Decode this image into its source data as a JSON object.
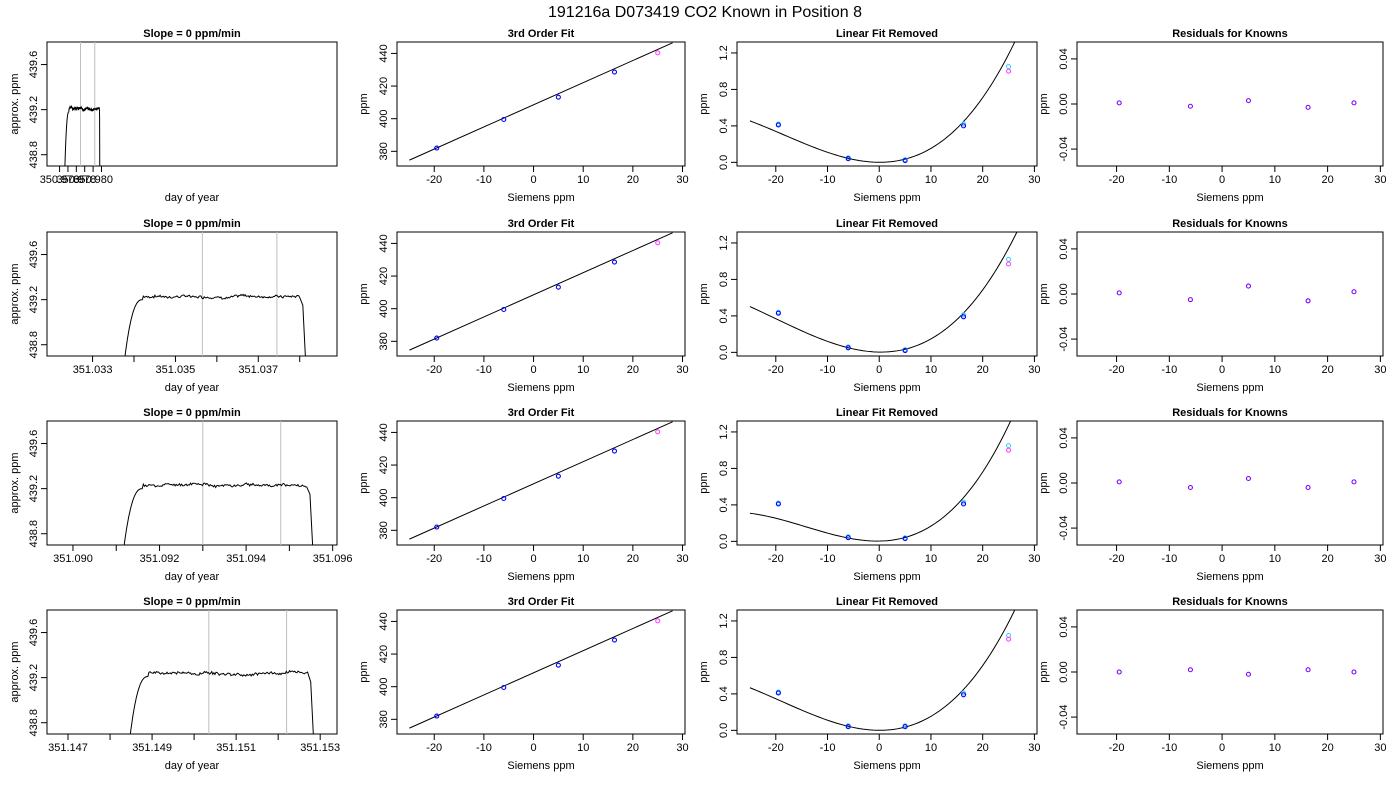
{
  "page_title": "191216a     D073419   CO2 Known in Position  8",
  "chart_data": [
    {
      "type": "line",
      "kind": "trace",
      "row": 1,
      "title": "Slope =  0  ppm/min",
      "xlabel": "day of year",
      "ylabel": "approx. ppm",
      "xlim": [
        350.9745,
        351.0091
      ],
      "ylim": [
        438.7,
        439.8
      ],
      "xticks": [
        350.976,
        350.977,
        350.978,
        350.979,
        350.98,
        350.981
      ],
      "xtick_labels": [
        "350.976",
        "",
        "350.978",
        "",
        "350.980",
        ""
      ],
      "yticks": [
        438.8,
        439.2,
        439.6
      ],
      "ytick_labels": [
        "438.8",
        "439.2",
        "439.6"
      ],
      "trace": {
        "start": 350.9766,
        "rise_end": 350.9771,
        "end": 350.9808,
        "fall_start": 350.98075,
        "level": 439.21,
        "low": 438.6,
        "wiggle": 0.02,
        "seed": 3
      },
      "vlines": [
        350.9785,
        350.9802
      ]
    },
    {
      "type": "line",
      "kind": "trace",
      "row": 2,
      "title": "Slope =  0  ppm/min",
      "xlabel": "day of year",
      "ylabel": "approx. ppm",
      "xlim": [
        351.0319,
        351.0389
      ],
      "ylim": [
        438.7,
        439.8
      ],
      "xticks": [
        351.033,
        351.034,
        351.035,
        351.036,
        351.037,
        351.038
      ],
      "xtick_labels": [
        "351.033",
        "",
        "351.035",
        "",
        "351.037",
        ""
      ],
      "yticks": [
        438.8,
        439.2,
        439.6
      ],
      "ytick_labels": [
        "438.8",
        "439.2",
        "439.6"
      ],
      "trace": {
        "start": 351.03375,
        "rise_end": 351.0342,
        "end": 351.03815,
        "fall_start": 351.038,
        "level": 439.23,
        "low": 438.6,
        "wiggle": 0.02,
        "seed": 7
      },
      "vlines": [
        351.03565,
        351.03745
      ]
    },
    {
      "type": "line",
      "kind": "trace",
      "row": 3,
      "title": "Slope =  0  ppm/min",
      "xlabel": "day of year",
      "ylabel": "approx. ppm",
      "xlim": [
        351.0894,
        351.0961
      ],
      "ylim": [
        438.7,
        439.8
      ],
      "xticks": [
        351.09,
        351.091,
        351.092,
        351.093,
        351.094,
        351.095,
        351.096
      ],
      "xtick_labels": [
        "351.090",
        "",
        "351.092",
        "",
        "351.094",
        "",
        "351.096"
      ],
      "yticks": [
        438.8,
        439.2,
        439.6
      ],
      "ytick_labels": [
        "438.8",
        "439.2",
        "439.6"
      ],
      "trace": {
        "start": 351.09115,
        "rise_end": 351.0916,
        "end": 351.09555,
        "fall_start": 351.0954,
        "level": 439.23,
        "low": 438.6,
        "wiggle": 0.02,
        "seed": 11
      },
      "vlines": [
        351.093,
        351.0948
      ]
    },
    {
      "type": "line",
      "kind": "trace",
      "row": 4,
      "title": "Slope =  0  ppm/min",
      "xlabel": "day of year",
      "ylabel": "approx. ppm",
      "xlim": [
        351.1465,
        351.1534
      ],
      "ylim": [
        438.7,
        439.8
      ],
      "xticks": [
        351.147,
        351.148,
        351.149,
        351.15,
        351.151,
        351.152,
        351.153
      ],
      "xtick_labels": [
        "351.147",
        "",
        "351.149",
        "",
        "351.151",
        "",
        "351.153"
      ],
      "yticks": [
        438.8,
        439.2,
        439.6
      ],
      "ytick_labels": [
        "438.8",
        "439.2",
        "439.6"
      ],
      "trace": {
        "start": 351.14845,
        "rise_end": 351.1489,
        "end": 351.15285,
        "fall_start": 351.1527,
        "level": 439.24,
        "low": 438.6,
        "wiggle": 0.02,
        "seed": 19
      },
      "vlines": [
        351.15035,
        351.1522
      ]
    },
    {
      "type": "scatter",
      "kind": "fit",
      "row": 1,
      "title": "3rd Order Fit",
      "xlabel": "Siemens ppm",
      "ylabel": "ppm",
      "xlim": [
        -27.5,
        30.5
      ],
      "ylim": [
        371,
        447
      ],
      "xticks": [
        -20,
        -10,
        0,
        10,
        20,
        30
      ],
      "yticks": [
        380,
        400,
        420,
        440
      ],
      "line": {
        "x0": -25,
        "y0": 374.6,
        "x1": 28,
        "y1": 446.5
      },
      "x": [
        -19.5,
        -6,
        5,
        16.3,
        25
      ],
      "y": [
        382.0,
        399.5,
        413.2,
        428.6,
        440.4
      ],
      "colors": [
        "#0000ff",
        "#0000ff",
        "#0000ff",
        "#0000ff",
        "#ff44ff"
      ]
    },
    {
      "type": "scatter",
      "kind": "fit",
      "row": 2,
      "title": "3rd Order Fit",
      "xlabel": "Siemens ppm",
      "ylabel": "ppm",
      "xlim": [
        -27.5,
        30.5
      ],
      "ylim": [
        371,
        447
      ],
      "xticks": [
        -20,
        -10,
        0,
        10,
        20,
        30
      ],
      "yticks": [
        380,
        400,
        420,
        440
      ],
      "line": {
        "x0": -25,
        "y0": 374.6,
        "x1": 28,
        "y1": 446.5
      },
      "x": [
        -19.5,
        -6,
        5,
        16.3,
        25
      ],
      "y": [
        382.0,
        399.5,
        413.2,
        428.6,
        440.4
      ],
      "colors": [
        "#0000ff",
        "#0000ff",
        "#0000ff",
        "#0000ff",
        "#ff44ff"
      ]
    },
    {
      "type": "scatter",
      "kind": "fit",
      "row": 3,
      "title": "3rd Order Fit",
      "xlabel": "Siemens ppm",
      "ylabel": "ppm",
      "xlim": [
        -27.5,
        30.5
      ],
      "ylim": [
        371,
        447
      ],
      "xticks": [
        -20,
        -10,
        0,
        10,
        20,
        30
      ],
      "yticks": [
        380,
        400,
        420,
        440
      ],
      "line": {
        "x0": -25,
        "y0": 374.6,
        "x1": 28,
        "y1": 446.5
      },
      "x": [
        -19.5,
        -6,
        5,
        16.3,
        25
      ],
      "y": [
        382.0,
        399.5,
        413.2,
        428.6,
        440.4
      ],
      "colors": [
        "#0000ff",
        "#0000ff",
        "#0000ff",
        "#0000ff",
        "#ff44ff"
      ]
    },
    {
      "type": "scatter",
      "kind": "fit",
      "row": 4,
      "title": "3rd Order Fit",
      "xlabel": "Siemens ppm",
      "ylabel": "ppm",
      "xlim": [
        -27.5,
        30.5
      ],
      "ylim": [
        371,
        447
      ],
      "xticks": [
        -20,
        -10,
        0,
        10,
        20,
        30
      ],
      "yticks": [
        380,
        400,
        420,
        440
      ],
      "line": {
        "x0": -25,
        "y0": 374.6,
        "x1": 28,
        "y1": 446.5
      },
      "x": [
        -19.5,
        -6,
        5,
        16.3,
        25
      ],
      "y": [
        382.0,
        399.5,
        413.2,
        428.6,
        440.4
      ],
      "colors": [
        "#0000ff",
        "#0000ff",
        "#0000ff",
        "#0000ff",
        "#ff44ff"
      ]
    },
    {
      "type": "scatter",
      "kind": "curve",
      "row": 1,
      "title": "Linear Fit Removed",
      "xlabel": "Siemens ppm",
      "ylabel": "ppm",
      "xlim": [
        -27.5,
        30.5
      ],
      "ylim": [
        -0.04,
        1.32
      ],
      "xticks": [
        -20,
        -10,
        0,
        10,
        20,
        30
      ],
      "yticks": [
        0.0,
        0.4,
        0.8,
        1.2
      ],
      "curve": {
        "x0": -25,
        "x1": 28,
        "coeffs": [
          2.37e-05,
          0.00131,
          -0.00022,
          0.0008
        ]
      },
      "x": [
        -19.5,
        -6,
        5,
        16.3,
        25
      ],
      "y": [
        0.41,
        0.04,
        0.02,
        0.4,
        1.0
      ],
      "x2": [
        -19.5,
        -6,
        5,
        16.3,
        25
      ],
      "y2": [
        0.42,
        0.05,
        0.03,
        0.42,
        1.05
      ],
      "colors": [
        "#0000ff",
        "#0000ff",
        "#0000ff",
        "#0000ff",
        "#ff44ff"
      ],
      "colors2": "#33ccff"
    },
    {
      "type": "scatter",
      "kind": "curve",
      "row": 2,
      "title": "Linear Fit Removed",
      "xlabel": "Siemens ppm",
      "ylabel": "ppm",
      "xlim": [
        -27.5,
        30.5
      ],
      "ylim": [
        -0.04,
        1.32
      ],
      "xticks": [
        -20,
        -10,
        0,
        10,
        20,
        30
      ],
      "yticks": [
        0.0,
        0.4,
        0.8,
        1.2
      ],
      "curve": {
        "x0": -25,
        "x1": 28,
        "coeffs": [
          2.18e-05,
          0.00131,
          -0.00083,
          0.003
        ]
      },
      "x": [
        -19.5,
        -6,
        5,
        16.3,
        25
      ],
      "y": [
        0.43,
        0.05,
        0.02,
        0.39,
        0.97
      ],
      "x2": [
        -19.5,
        -6,
        5,
        16.3,
        25
      ],
      "y2": [
        0.44,
        0.06,
        0.03,
        0.41,
        1.02
      ],
      "colors": [
        "#0000ff",
        "#0000ff",
        "#0000ff",
        "#0000ff",
        "#ff44ff"
      ],
      "colors2": "#33ccff"
    },
    {
      "type": "scatter",
      "kind": "curve",
      "row": 3,
      "title": "Linear Fit Removed",
      "xlabel": "Siemens ppm",
      "ylabel": "ppm",
      "xlim": [
        -27.5,
        30.5
      ],
      "ylim": [
        -0.04,
        1.32
      ],
      "xticks": [
        -20,
        -10,
        0,
        10,
        20,
        30
      ],
      "yticks": [
        0.0,
        0.4,
        0.8,
        1.2
      ],
      "curve": {
        "x0": -25,
        "x1": 28,
        "coeffs": [
          2.94e-05,
          0.00126,
          0.00091,
          0.003
        ]
      },
      "x": [
        -19.5,
        -6,
        5,
        16.3,
        25
      ],
      "y": [
        0.41,
        0.04,
        0.03,
        0.41,
        1.0
      ],
      "x2": [
        -19.5,
        -6,
        5,
        16.3,
        25
      ],
      "y2": [
        0.42,
        0.05,
        0.04,
        0.43,
        1.05
      ],
      "colors": [
        "#0000ff",
        "#0000ff",
        "#0000ff",
        "#0000ff",
        "#ff44ff"
      ],
      "colors2": "#33ccff"
    },
    {
      "type": "scatter",
      "kind": "curve",
      "row": 4,
      "title": "Linear Fit Removed",
      "xlabel": "Siemens ppm",
      "ylabel": "ppm",
      "xlim": [
        -27.5,
        30.5
      ],
      "ylim": [
        -0.04,
        1.32
      ],
      "xticks": [
        -20,
        -10,
        0,
        10,
        20,
        30
      ],
      "yticks": [
        0.0,
        0.4,
        0.8,
        1.2
      ],
      "curve": {
        "x0": -25,
        "x1": 28,
        "coeffs": [
          2.33e-05,
          0.00132,
          -0.00022,
          0.0006
        ]
      },
      "x": [
        -19.5,
        -6,
        5,
        16.3,
        25
      ],
      "y": [
        0.41,
        0.04,
        0.04,
        0.39,
        1.0
      ],
      "x2": [
        -19.5,
        -6,
        5,
        16.3,
        25
      ],
      "y2": [
        0.42,
        0.05,
        0.05,
        0.41,
        1.04
      ],
      "colors": [
        "#0000ff",
        "#0000ff",
        "#0000ff",
        "#0000ff",
        "#ff44ff"
      ],
      "colors2": "#33ccff"
    },
    {
      "type": "scatter",
      "kind": "resid",
      "row": 1,
      "title": "Residuals for Knowns",
      "xlabel": "Siemens ppm",
      "ylabel": "ppm",
      "xlim": [
        -27.5,
        30.5
      ],
      "ylim": [
        -0.055,
        0.055
      ],
      "xticks": [
        -20,
        -10,
        0,
        10,
        20,
        30
      ],
      "yticks": [
        -0.04,
        0.0,
        0.04
      ],
      "x": [
        -19.5,
        -6,
        5,
        16.3,
        25
      ],
      "y": [
        0.001,
        -0.002,
        0.003,
        -0.003,
        0.001
      ],
      "colors": [
        "#7b00ff",
        "#7b00ff",
        "#7b00ff",
        "#7b00ff",
        "#7b00ff"
      ]
    },
    {
      "type": "scatter",
      "kind": "resid",
      "row": 2,
      "title": "Residuals for Knowns",
      "xlabel": "Siemens ppm",
      "ylabel": "ppm",
      "xlim": [
        -27.5,
        30.5
      ],
      "ylim": [
        -0.055,
        0.055
      ],
      "xticks": [
        -20,
        -10,
        0,
        10,
        20,
        30
      ],
      "yticks": [
        -0.04,
        0.0,
        0.04
      ],
      "x": [
        -19.5,
        -6,
        5,
        16.3,
        25
      ],
      "y": [
        0.001,
        -0.005,
        0.007,
        -0.006,
        0.002
      ],
      "colors": [
        "#7b00ff",
        "#7b00ff",
        "#7b00ff",
        "#7b00ff",
        "#7b00ff"
      ]
    },
    {
      "type": "scatter",
      "kind": "resid",
      "row": 3,
      "title": "Residuals for Knowns",
      "xlabel": "Siemens ppm",
      "ylabel": "ppm",
      "xlim": [
        -27.5,
        30.5
      ],
      "ylim": [
        -0.055,
        0.055
      ],
      "xticks": [
        -20,
        -10,
        0,
        10,
        20,
        30
      ],
      "yticks": [
        -0.04,
        0.0,
        0.04
      ],
      "x": [
        -19.5,
        -6,
        5,
        16.3,
        25
      ],
      "y": [
        0.001,
        -0.004,
        0.004,
        -0.004,
        0.001
      ],
      "colors": [
        "#7b00ff",
        "#7b00ff",
        "#7b00ff",
        "#7b00ff",
        "#7b00ff"
      ]
    },
    {
      "type": "scatter",
      "kind": "resid",
      "row": 4,
      "title": "Residuals for Knowns",
      "xlabel": "Siemens ppm",
      "ylabel": "ppm",
      "xlim": [
        -27.5,
        30.5
      ],
      "ylim": [
        -0.055,
        0.055
      ],
      "xticks": [
        -20,
        -10,
        0,
        10,
        20,
        30
      ],
      "yticks": [
        -0.04,
        0.0,
        0.04
      ],
      "x": [
        -19.5,
        -6,
        5,
        16.3,
        25
      ],
      "y": [
        0.0,
        0.002,
        -0.002,
        0.002,
        0.0
      ],
      "colors": [
        "#7b00ff",
        "#7b00ff",
        "#7b00ff",
        "#7b00ff",
        "#7b00ff"
      ]
    }
  ]
}
